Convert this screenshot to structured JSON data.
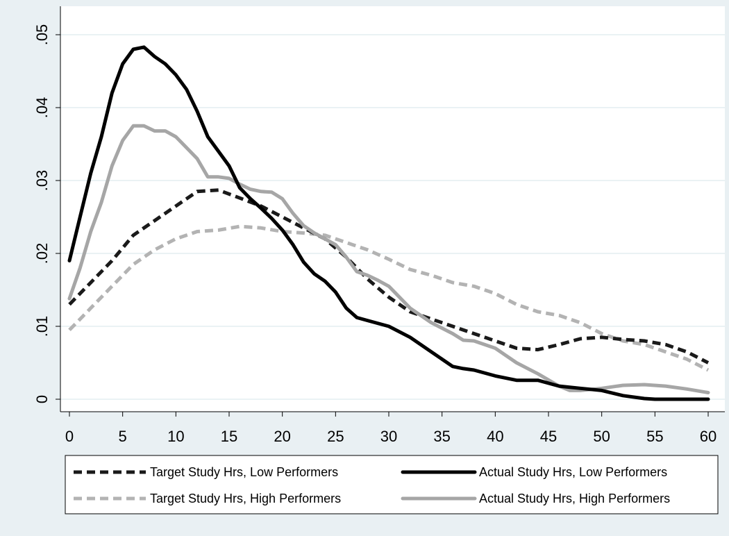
{
  "chart_data": {
    "type": "line",
    "title": "",
    "xlabel": "",
    "ylabel": "",
    "xlim": [
      0,
      60
    ],
    "ylim": [
      0,
      0.05
    ],
    "x_ticks": [
      0,
      5,
      10,
      15,
      20,
      25,
      30,
      35,
      40,
      45,
      50,
      55,
      60
    ],
    "x_tick_labels": [
      "0",
      "5",
      "10",
      "15",
      "20",
      "25",
      "30",
      "35",
      "40",
      "45",
      "50",
      "55",
      "60"
    ],
    "y_ticks": [
      0,
      0.01,
      0.02,
      0.03,
      0.04,
      0.05
    ],
    "y_tick_labels": [
      "0",
      ".01",
      ".02",
      ".03",
      ".04",
      ".05"
    ],
    "grid": "horizontal",
    "legend_position": "bottom",
    "series": [
      {
        "name": "Target Study Hrs, Low Performers",
        "color": "#1a1a1a",
        "dash": "dashed",
        "x": [
          0,
          2,
          4,
          6,
          8,
          10,
          12,
          14,
          16,
          18,
          20,
          22,
          24,
          26,
          28,
          30,
          32,
          34,
          36,
          38,
          40,
          42,
          44,
          46,
          48,
          50,
          52,
          54,
          56,
          58,
          60
        ],
        "y": [
          0.013,
          0.016,
          0.019,
          0.0225,
          0.0245,
          0.0265,
          0.0285,
          0.0287,
          0.0276,
          0.0265,
          0.025,
          0.0235,
          0.022,
          0.0195,
          0.0165,
          0.014,
          0.012,
          0.011,
          0.01,
          0.009,
          0.008,
          0.007,
          0.0068,
          0.0075,
          0.0083,
          0.0085,
          0.0082,
          0.008,
          0.0075,
          0.0065,
          0.005
        ]
      },
      {
        "name": "Target Study Hrs, High Performers",
        "color": "#b3b3b3",
        "dash": "dashed",
        "x": [
          0,
          2,
          4,
          6,
          8,
          10,
          12,
          14,
          16,
          18,
          20,
          22,
          24,
          26,
          28,
          30,
          32,
          34,
          36,
          38,
          40,
          42,
          44,
          46,
          48,
          50,
          52,
          54,
          56,
          58,
          60
        ],
        "y": [
          0.0095,
          0.0125,
          0.0155,
          0.0185,
          0.0205,
          0.022,
          0.023,
          0.0232,
          0.0237,
          0.0235,
          0.023,
          0.0228,
          0.0225,
          0.0215,
          0.0205,
          0.0192,
          0.0178,
          0.017,
          0.016,
          0.0155,
          0.0145,
          0.013,
          0.012,
          0.0115,
          0.0105,
          0.009,
          0.008,
          0.0075,
          0.0065,
          0.0055,
          0.004
        ]
      },
      {
        "name": "Actual Study Hrs, Low Performers",
        "color": "#000000",
        "dash": "solid",
        "x": [
          0,
          1,
          2,
          3,
          4,
          5,
          6,
          7,
          8,
          9,
          10,
          11,
          12,
          13,
          14,
          15,
          16,
          17,
          18,
          19,
          20,
          21,
          22,
          23,
          24,
          25,
          26,
          27,
          28,
          30,
          32,
          34,
          36,
          37,
          38,
          40,
          42,
          44,
          46,
          48,
          50,
          52,
          54,
          55,
          56,
          58,
          60
        ],
        "y": [
          0.019,
          0.025,
          0.031,
          0.036,
          0.042,
          0.046,
          0.048,
          0.0483,
          0.047,
          0.046,
          0.0445,
          0.0425,
          0.0395,
          0.036,
          0.034,
          0.032,
          0.029,
          0.0275,
          0.0262,
          0.0248,
          0.0232,
          0.0212,
          0.0188,
          0.0172,
          0.0162,
          0.0147,
          0.0125,
          0.0112,
          0.0108,
          0.01,
          0.0085,
          0.0065,
          0.0045,
          0.0042,
          0.004,
          0.0032,
          0.0026,
          0.0026,
          0.0018,
          0.0015,
          0.0012,
          0.0005,
          0.0001,
          0.0,
          0.0,
          0.0,
          0.0
        ]
      },
      {
        "name": "Actual Study Hrs, High Performers",
        "color": "#a6a6a6",
        "dash": "solid",
        "x": [
          0,
          1,
          2,
          3,
          4,
          5,
          6,
          7,
          8,
          9,
          10,
          11,
          12,
          13,
          14,
          15,
          16,
          17,
          18,
          19,
          20,
          21,
          22,
          23,
          24,
          25,
          26,
          27,
          28,
          29,
          30,
          32,
          34,
          36,
          37,
          38,
          40,
          42,
          44,
          46,
          47,
          48,
          50,
          52,
          54,
          56,
          58,
          60
        ],
        "y": [
          0.0138,
          0.018,
          0.023,
          0.027,
          0.032,
          0.0355,
          0.0375,
          0.0375,
          0.0368,
          0.0368,
          0.036,
          0.0345,
          0.033,
          0.0305,
          0.0305,
          0.0303,
          0.0295,
          0.0288,
          0.0285,
          0.0284,
          0.0275,
          0.0255,
          0.0238,
          0.0228,
          0.022,
          0.0212,
          0.0195,
          0.0175,
          0.017,
          0.0163,
          0.0155,
          0.0125,
          0.0105,
          0.009,
          0.0081,
          0.008,
          0.007,
          0.005,
          0.0035,
          0.0018,
          0.0012,
          0.0012,
          0.0015,
          0.0019,
          0.002,
          0.0018,
          0.0014,
          0.0009
        ]
      }
    ],
    "legend": {
      "columns": 2,
      "order": [
        0,
        2,
        1,
        3
      ]
    }
  }
}
